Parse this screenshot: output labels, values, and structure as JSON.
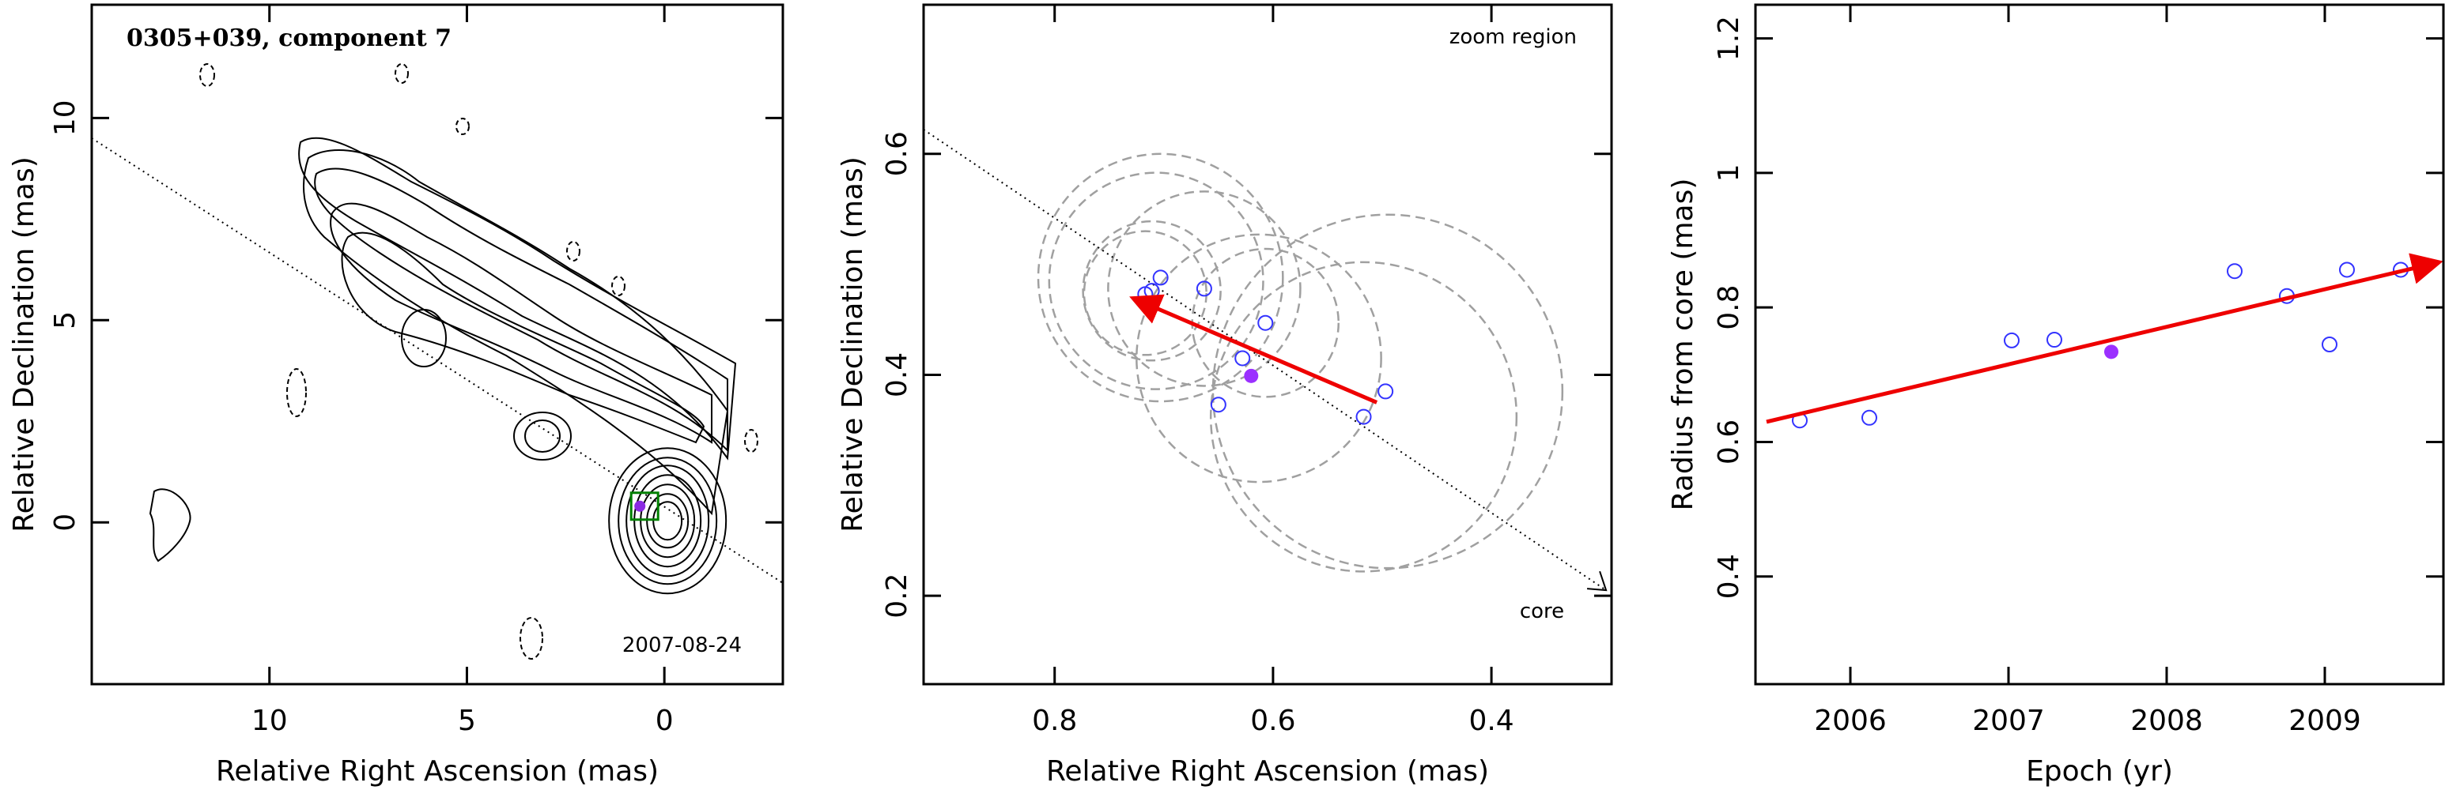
{
  "chart_data": [
    {
      "type": "contour",
      "title": "0305+039, component 7",
      "epoch_label": "2007-08-24",
      "xlabel": "Relative Right Ascension (mas)",
      "ylabel": "Relative Declination (mas)",
      "xlim": [
        14.5,
        -3
      ],
      "ylim": [
        -4,
        12.8
      ],
      "xticks": [
        10,
        5,
        0
      ],
      "yticks": [
        0,
        5,
        10
      ],
      "x_reversed": true,
      "jet_axis_line": {
        "x": [
          14.5,
          -3
        ],
        "y": [
          9.5,
          -1.5
        ]
      },
      "component_box_center": {
        "x": 0.5,
        "y": 0.4
      },
      "component_marker": {
        "x": 0.62,
        "y": 0.4
      },
      "colors": {
        "contour": "#000000",
        "box": "#008000",
        "marker": "#8a2be2"
      }
    },
    {
      "type": "scatter",
      "annotation_top": "zoom region",
      "annotation_core": "core",
      "xlabel": "Relative Right Ascension (mas)",
      "ylabel": "Relative Declination (mas)",
      "xlim": [
        0.92,
        0.29
      ],
      "ylim": [
        0.12,
        0.735
      ],
      "xticks": [
        0.8,
        0.6,
        0.4
      ],
      "yticks": [
        0.2,
        0.4,
        0.6
      ],
      "x_reversed": true,
      "points": [
        {
          "x": 0.717,
          "y": 0.473
        },
        {
          "x": 0.711,
          "y": 0.476
        },
        {
          "x": 0.703,
          "y": 0.488
        },
        {
          "x": 0.663,
          "y": 0.478
        },
        {
          "x": 0.607,
          "y": 0.447
        },
        {
          "x": 0.628,
          "y": 0.415
        },
        {
          "x": 0.65,
          "y": 0.373
        },
        {
          "x": 0.517,
          "y": 0.362
        },
        {
          "x": 0.497,
          "y": 0.385
        }
      ],
      "highlight_point": {
        "x": 0.62,
        "y": 0.399
      },
      "error_circles": [
        {
          "x": 0.703,
          "y": 0.488,
          "r": 0.112
        },
        {
          "x": 0.707,
          "y": 0.485,
          "r": 0.098
        },
        {
          "x": 0.711,
          "y": 0.476,
          "r": 0.063
        },
        {
          "x": 0.717,
          "y": 0.474,
          "r": 0.056
        },
        {
          "x": 0.663,
          "y": 0.478,
          "r": 0.088
        },
        {
          "x": 0.607,
          "y": 0.447,
          "r": 0.067
        },
        {
          "x": 0.613,
          "y": 0.415,
          "r": 0.112
        },
        {
          "x": 0.495,
          "y": 0.385,
          "r": 0.16
        },
        {
          "x": 0.517,
          "y": 0.362,
          "r": 0.14
        }
      ],
      "motion_vector": {
        "from": {
          "x": 0.505,
          "y": 0.375
        },
        "to": {
          "x": 0.725,
          "y": 0.468
        }
      },
      "jet_axis_line": {
        "x": [
          0.92,
          0.295
        ],
        "y": [
          0.622,
          0.205
        ]
      },
      "colors": {
        "points": "#3333ff",
        "highlight": "#9b30ff",
        "circles": "#a0a0a0",
        "vector": "#ee0000"
      }
    },
    {
      "type": "scatter",
      "xlabel": "Epoch (yr)",
      "ylabel": "Radius from core (mas)",
      "xlim": [
        2005.4,
        2009.75
      ],
      "ylim": [
        0.24,
        1.25
      ],
      "xticks": [
        2006,
        2007,
        2008,
        2009
      ],
      "yticks": [
        0.4,
        0.6,
        0.8,
        1,
        1.2
      ],
      "points": [
        {
          "x": 2005.68,
          "y": 0.632
        },
        {
          "x": 2006.12,
          "y": 0.636
        },
        {
          "x": 2007.02,
          "y": 0.751
        },
        {
          "x": 2007.29,
          "y": 0.752
        },
        {
          "x": 2008.43,
          "y": 0.854
        },
        {
          "x": 2008.76,
          "y": 0.817
        },
        {
          "x": 2009.03,
          "y": 0.745
        },
        {
          "x": 2009.14,
          "y": 0.856
        },
        {
          "x": 2009.48,
          "y": 0.856
        }
      ],
      "highlight_point": {
        "x": 2007.65,
        "y": 0.734
      },
      "fit_line": {
        "from": {
          "x": 2005.47,
          "y": 0.63
        },
        "to": {
          "x": 2009.7,
          "y": 0.866
        }
      },
      "colors": {
        "points": "#3333ff",
        "highlight": "#9b30ff",
        "fit": "#ee0000"
      }
    }
  ]
}
